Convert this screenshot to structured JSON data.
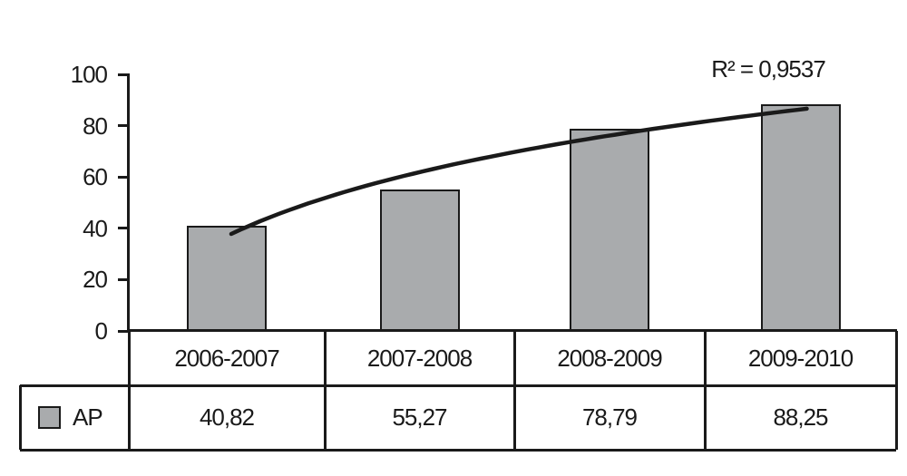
{
  "chart_data": {
    "type": "bar",
    "title": "",
    "xlabel": "",
    "ylabel": "",
    "categories": [
      "2006-2007",
      "2007-2008",
      "2008-2009",
      "2009-2010"
    ],
    "series": [
      {
        "name": "AP",
        "values": [
          40.82,
          55.27,
          78.79,
          88.25
        ]
      }
    ],
    "value_labels": [
      "40,82",
      "55,27",
      "78,79",
      "88,25"
    ],
    "y_ticks": [
      "100",
      "80",
      "60",
      "40",
      "20",
      "0"
    ],
    "ylim": [
      0,
      100
    ],
    "grid": "off",
    "legend": {
      "position": "bottom-table",
      "entries": [
        "AP"
      ]
    },
    "trendline": {
      "type": "logarithmic",
      "r2_label": "R² = 0,9537"
    },
    "colors": {
      "bar_fill": "#a9abad",
      "line": "#1a1a1a",
      "text": "#1a1a1a",
      "background": "#ffffff"
    }
  }
}
